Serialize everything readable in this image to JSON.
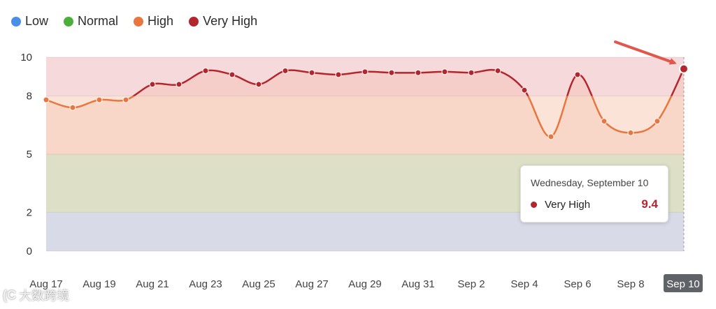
{
  "legend": [
    {
      "label": "Low",
      "color": "#4a8fe7"
    },
    {
      "label": "Normal",
      "color": "#4caf3b"
    },
    {
      "label": "High",
      "color": "#e8763e"
    },
    {
      "label": "Very High",
      "color": "#b3262d"
    }
  ],
  "chart_data": {
    "type": "line",
    "x": [
      "Aug 17",
      "Aug 18",
      "Aug 19",
      "Aug 20",
      "Aug 21",
      "Aug 22",
      "Aug 23",
      "Aug 24",
      "Aug 25",
      "Aug 26",
      "Aug 27",
      "Aug 28",
      "Aug 29",
      "Aug 30",
      "Aug 31",
      "Sep 1",
      "Sep 2",
      "Sep 3",
      "Sep 4",
      "Sep 5",
      "Sep 6",
      "Sep 7",
      "Sep 8",
      "Sep 9",
      "Sep 10"
    ],
    "x_tick_labels": [
      "Aug 17",
      "Aug 19",
      "Aug 21",
      "Aug 23",
      "Aug 25",
      "Aug 27",
      "Aug 29",
      "Aug 31",
      "Sep 2",
      "Sep 4",
      "Sep 6",
      "Sep 8",
      "Sep 10"
    ],
    "values": [
      7.8,
      7.4,
      7.8,
      7.8,
      8.6,
      8.6,
      9.3,
      9.1,
      8.6,
      9.3,
      9.2,
      9.1,
      9.25,
      9.2,
      9.2,
      9.25,
      9.2,
      9.3,
      8.3,
      5.9,
      9.1,
      6.7,
      6.1,
      6.7,
      9.4
    ],
    "ylim": [
      0,
      10
    ],
    "y_ticks": [
      0,
      2,
      5,
      8,
      10
    ],
    "bands": [
      {
        "name": "Low",
        "from": 0,
        "to": 2,
        "color": "#d6e6fb"
      },
      {
        "name": "Normal",
        "from": 2,
        "to": 5,
        "color": "#dcedd6"
      },
      {
        "name": "High",
        "from": 5,
        "to": 8,
        "color": "#fbe3d8"
      },
      {
        "name": "Very High",
        "from": 8,
        "to": 10,
        "color": "#f6d9da"
      }
    ],
    "line_colors": {
      "high": "#e8763e",
      "very_high": "#b3262d"
    },
    "highlighted_x": "Sep 10"
  },
  "tooltip": {
    "date": "Wednesday, September 10",
    "series": "Very High",
    "value": "9.4",
    "color": "#b3262d"
  },
  "watermark": {
    "logo": "(C",
    "text": "大数跨境"
  }
}
